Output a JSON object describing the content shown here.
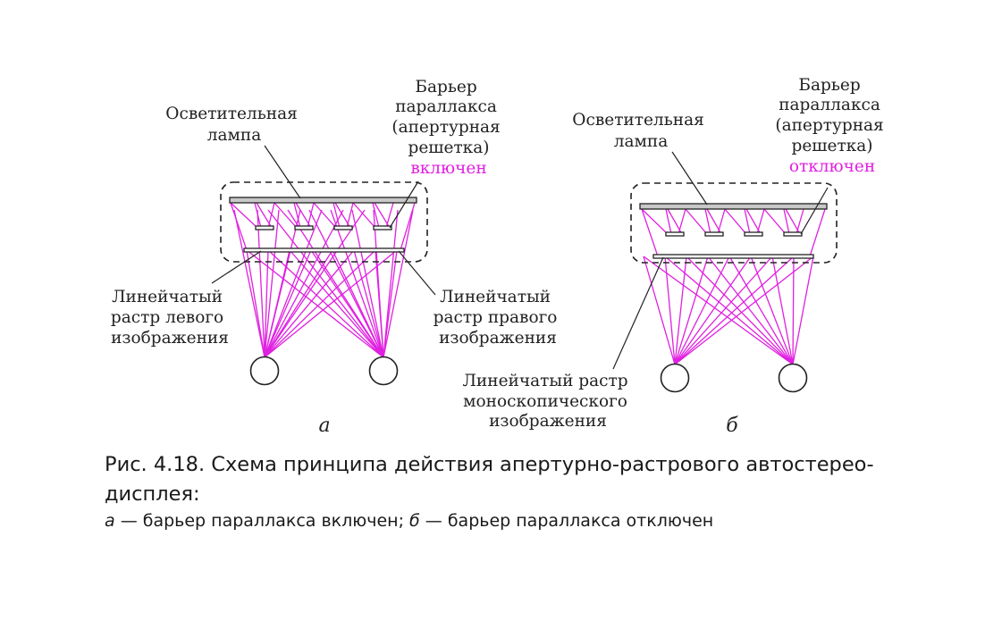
{
  "diagram_a": {
    "lamp_label": [
      "Осветительная",
      "лампа"
    ],
    "barrier_label": [
      "Барьер",
      "параллакса",
      "(апертурная",
      "решетка)"
    ],
    "barrier_state": "включен",
    "left_raster_label": [
      "Линейчатый",
      "растр левого",
      "изображения"
    ],
    "right_raster_label": [
      "Линейчатый",
      "растр правого",
      "изображения"
    ],
    "figure_letter": "а"
  },
  "diagram_b": {
    "lamp_label": [
      "Осветительная",
      "лампа"
    ],
    "barrier_label": [
      "Барьер",
      "параллакса",
      "(апертурная",
      "решетка)"
    ],
    "barrier_state": "отключен",
    "mono_raster_label": [
      "Линейчатый растр",
      "моноскопического",
      "изображения"
    ],
    "figure_letter": "б"
  },
  "caption": {
    "title": "Рис. 4.18. Схема принципа действия апертурно-растрового автостерео-дисплея:",
    "sub_a_letter": "а",
    "sub_a_text": " — барьер параллакса включен; ",
    "sub_b_letter": "б",
    "sub_b_text": " — барьер параллакса отключен"
  },
  "colors": {
    "rays": "#e020e0",
    "state_text": "#e020e0",
    "lines": "#222222",
    "lamp_fill": "#c8c8c8"
  }
}
